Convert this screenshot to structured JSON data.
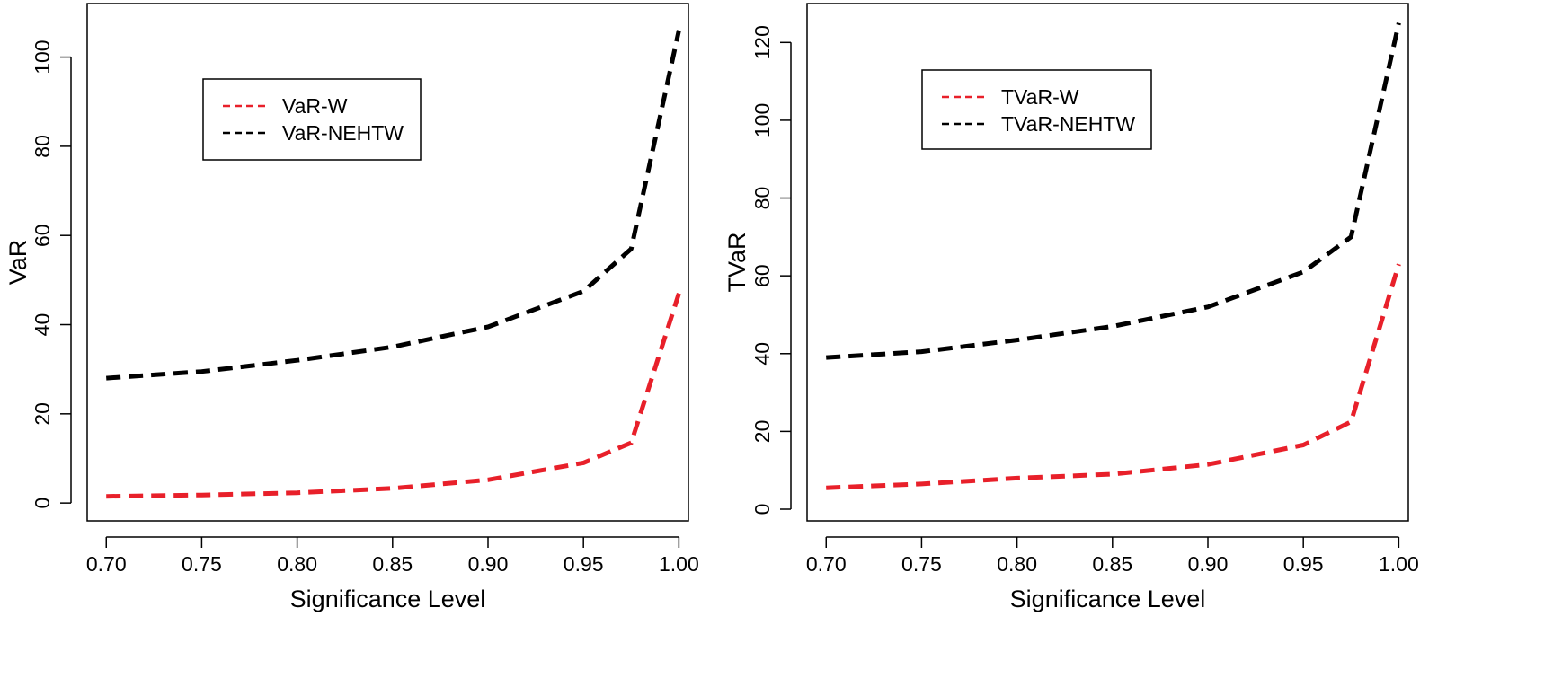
{
  "chart_data": [
    {
      "type": "line",
      "title": "",
      "xlabel": "Significance Level",
      "ylabel": "VaR",
      "xlim": [
        0.69,
        1.005
      ],
      "ylim": [
        -4,
        112
      ],
      "x_ticks": [
        0.7,
        0.75,
        0.8,
        0.85,
        0.9,
        0.95,
        1.0
      ],
      "x_tick_labels": [
        "0.70",
        "0.75",
        "0.80",
        "0.85",
        "0.90",
        "0.95",
        "1.00"
      ],
      "y_ticks": [
        0,
        20,
        40,
        60,
        80,
        100
      ],
      "y_tick_labels": [
        "0",
        "20",
        "40",
        "60",
        "80",
        "100"
      ],
      "legend_placement": "upper-left",
      "x": [
        0.7,
        0.75,
        0.8,
        0.85,
        0.9,
        0.95,
        0.975,
        1.0
      ],
      "series": [
        {
          "name": "VaR-W",
          "color": "#e8202a",
          "dash": "dashed",
          "values": [
            1.5,
            1.8,
            2.3,
            3.3,
            5.2,
            9.0,
            13.5,
            47.0
          ]
        },
        {
          "name": "VaR-NEHTW",
          "color": "#000000",
          "dash": "dashed",
          "values": [
            28.0,
            29.5,
            32.0,
            35.0,
            39.5,
            47.5,
            57.0,
            106.0
          ]
        }
      ]
    },
    {
      "type": "line",
      "title": "",
      "xlabel": "Significance Level",
      "ylabel": "TVaR",
      "xlim": [
        0.69,
        1.005
      ],
      "ylim": [
        -3,
        130
      ],
      "x_ticks": [
        0.7,
        0.75,
        0.8,
        0.85,
        0.9,
        0.95,
        1.0
      ],
      "x_tick_labels": [
        "0.70",
        "0.75",
        "0.80",
        "0.85",
        "0.90",
        "0.95",
        "1.00"
      ],
      "y_ticks": [
        0,
        20,
        40,
        60,
        80,
        100,
        120
      ],
      "y_tick_labels": [
        "0",
        "20",
        "40",
        "60",
        "80",
        "100",
        "120"
      ],
      "legend_placement": "upper-left",
      "x": [
        0.7,
        0.75,
        0.8,
        0.85,
        0.9,
        0.95,
        0.975,
        1.0
      ],
      "series": [
        {
          "name": "TVaR-W",
          "color": "#e8202a",
          "dash": "dashed",
          "values": [
            5.5,
            6.5,
            8.0,
            9.0,
            11.5,
            16.5,
            22.5,
            63.0
          ]
        },
        {
          "name": "TVaR-NEHTW",
          "color": "#000000",
          "dash": "dashed",
          "values": [
            39.0,
            40.5,
            43.5,
            47.0,
            52.0,
            61.0,
            70.0,
            125.0
          ]
        }
      ]
    }
  ]
}
